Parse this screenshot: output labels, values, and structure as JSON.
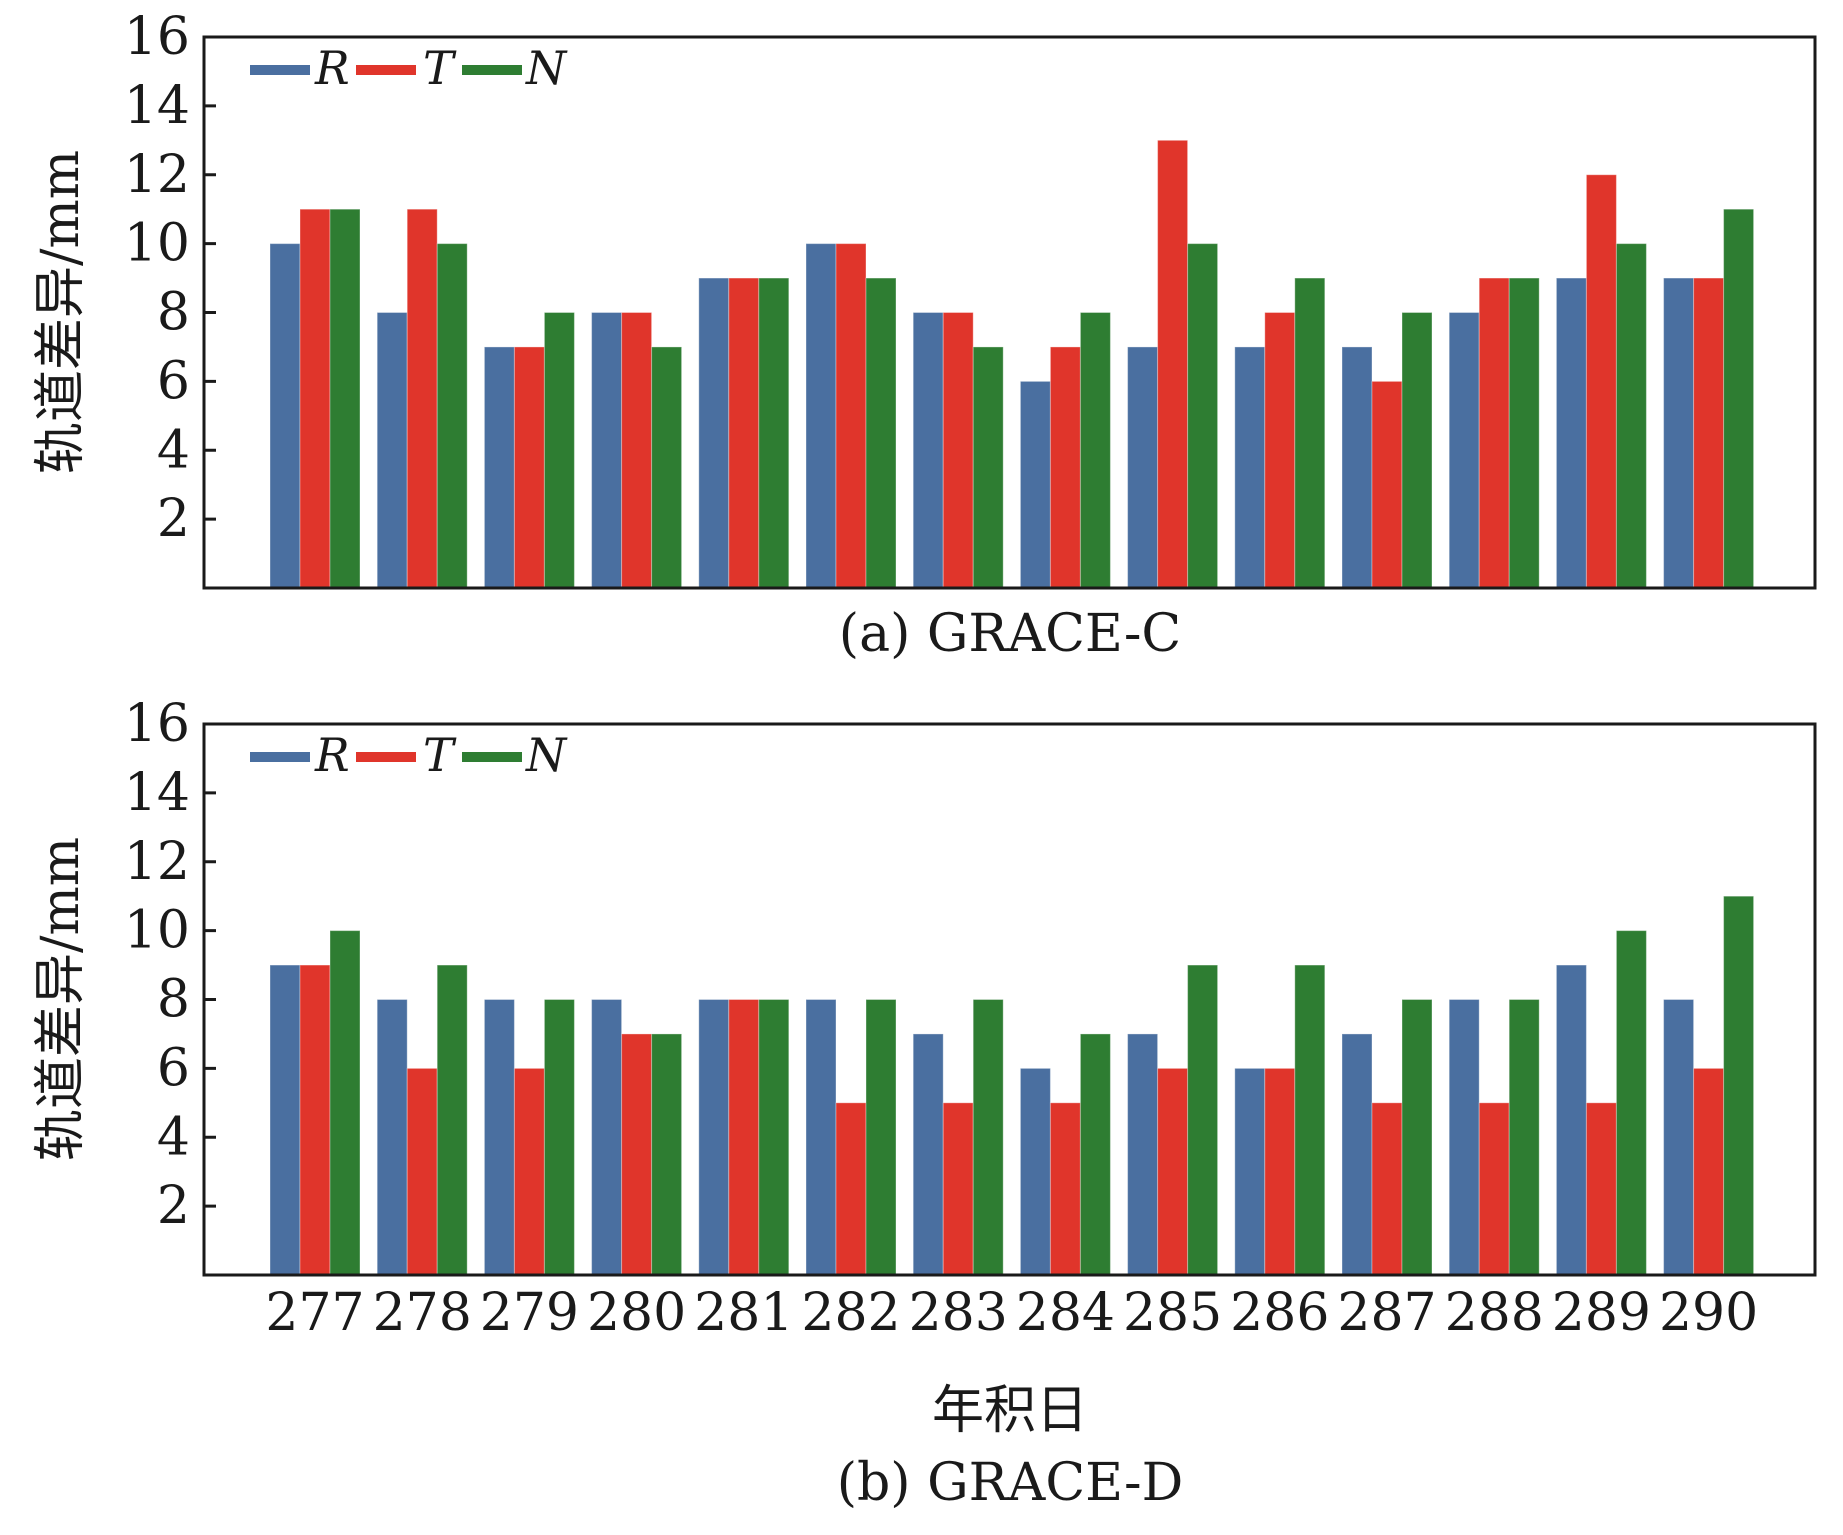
{
  "colors": {
    "R": "#4a6fa0",
    "T": "#e0352b",
    "N": "#2e7d32",
    "axis": "#1a1a1a"
  },
  "xlabel": "年积日",
  "chart_data": [
    {
      "type": "bar",
      "caption": "(a) GRACE-C",
      "ylabel": "轨道差异/mm",
      "ylim": [
        0,
        16
      ],
      "yticks": [
        2,
        4,
        6,
        8,
        10,
        12,
        14,
        16
      ],
      "categories": [
        "277",
        "278",
        "279",
        "280",
        "281",
        "282",
        "283",
        "284",
        "285",
        "286",
        "287",
        "288",
        "289",
        "290"
      ],
      "show_x_ticks": false,
      "legend": [
        "R",
        "T",
        "N"
      ],
      "legend_position": "top-left",
      "series": [
        {
          "name": "R",
          "values": [
            10,
            8,
            7,
            8,
            9,
            10,
            8,
            6,
            7,
            7,
            7,
            8,
            9,
            9
          ]
        },
        {
          "name": "T",
          "values": [
            11,
            11,
            7,
            8,
            9,
            10,
            8,
            7,
            13,
            8,
            6,
            9,
            12,
            9
          ]
        },
        {
          "name": "N",
          "values": [
            11,
            10,
            8,
            7,
            9,
            9,
            7,
            8,
            10,
            9,
            8,
            9,
            10,
            11
          ]
        }
      ]
    },
    {
      "type": "bar",
      "caption": "(b) GRACE-D",
      "ylabel": "轨道差异/mm",
      "ylim": [
        0,
        16
      ],
      "yticks": [
        2,
        4,
        6,
        8,
        10,
        12,
        14,
        16
      ],
      "categories": [
        "277",
        "278",
        "279",
        "280",
        "281",
        "282",
        "283",
        "284",
        "285",
        "286",
        "287",
        "288",
        "289",
        "290"
      ],
      "show_x_ticks": true,
      "legend": [
        "R",
        "T",
        "N"
      ],
      "legend_position": "top-left",
      "series": [
        {
          "name": "R",
          "values": [
            9,
            8,
            8,
            8,
            8,
            8,
            7,
            6,
            7,
            6,
            7,
            8,
            9,
            8
          ]
        },
        {
          "name": "T",
          "values": [
            9,
            6,
            6,
            7,
            8,
            5,
            5,
            5,
            6,
            6,
            5,
            5,
            5,
            6
          ]
        },
        {
          "name": "N",
          "values": [
            10,
            9,
            8,
            7,
            8,
            8,
            8,
            7,
            9,
            9,
            8,
            8,
            10,
            11
          ]
        }
      ]
    }
  ]
}
